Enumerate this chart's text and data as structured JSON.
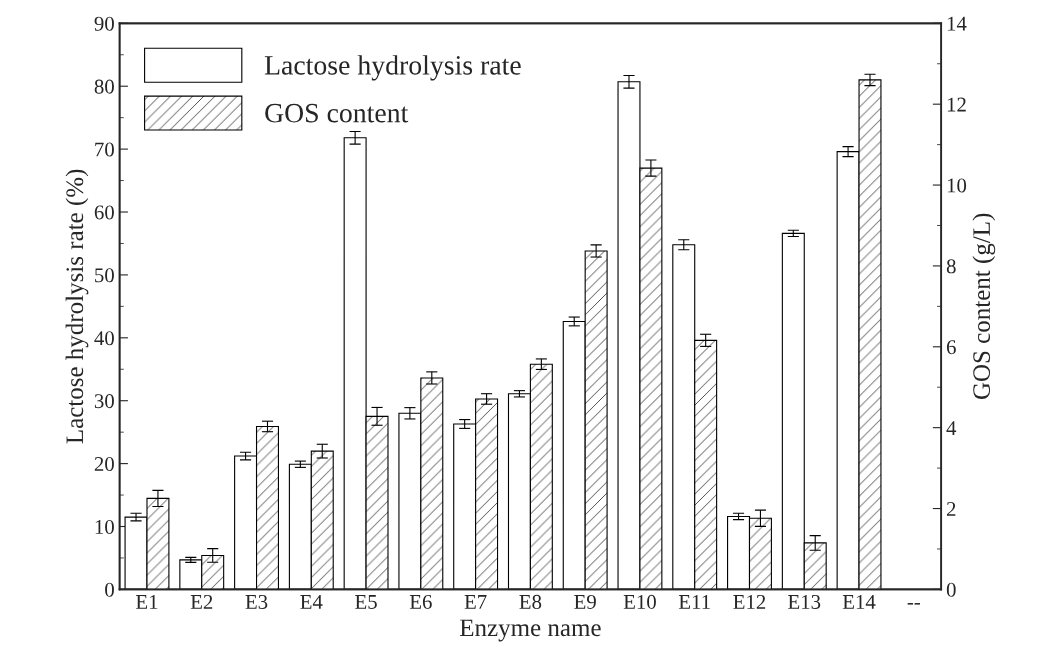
{
  "chart_data": {
    "type": "bar",
    "xlabel": "Enzyme name",
    "ylabel": "Lactose hydrolysis rate (%)",
    "y2label": "GOS content (g/L)",
    "categories": [
      "E1",
      "E2",
      "E3",
      "E4",
      "E5",
      "E6",
      "E7",
      "E8",
      "E9",
      "E10",
      "E11",
      "E12",
      "E13",
      "E14",
      "--"
    ],
    "series": [
      {
        "name": "Lactose hydrolysis rate",
        "color": "#ffffff",
        "values": [
          11.5,
          4.7,
          21.2,
          19.9,
          71.8,
          28.0,
          26.3,
          31.1,
          42.6,
          80.7,
          54.8,
          11.6,
          56.6,
          69.6,
          null
        ],
        "errors": [
          0.6,
          0.4,
          0.6,
          0.5,
          1.0,
          0.9,
          0.7,
          0.5,
          0.7,
          1.0,
          0.8,
          0.5,
          0.5,
          0.8,
          null
        ]
      },
      {
        "name": "GOS content",
        "color": "#000000",
        "axis": "y2",
        "values": [
          2.25,
          0.84,
          4.03,
          3.42,
          4.28,
          5.23,
          4.71,
          5.57,
          8.37,
          10.42,
          6.16,
          1.76,
          1.15,
          12.6,
          null
        ],
        "errors": [
          0.2,
          0.17,
          0.13,
          0.17,
          0.22,
          0.15,
          0.13,
          0.13,
          0.15,
          0.2,
          0.15,
          0.2,
          0.18,
          0.14,
          null
        ]
      }
    ],
    "ylim": [
      0,
      90
    ],
    "yticks": [
      0,
      10,
      20,
      30,
      40,
      50,
      60,
      70,
      80,
      90
    ],
    "y2lim": [
      0,
      14
    ],
    "y2ticks": [
      0,
      2,
      4,
      6,
      8,
      10,
      12,
      14
    ],
    "grid": false,
    "legend": "top left"
  }
}
